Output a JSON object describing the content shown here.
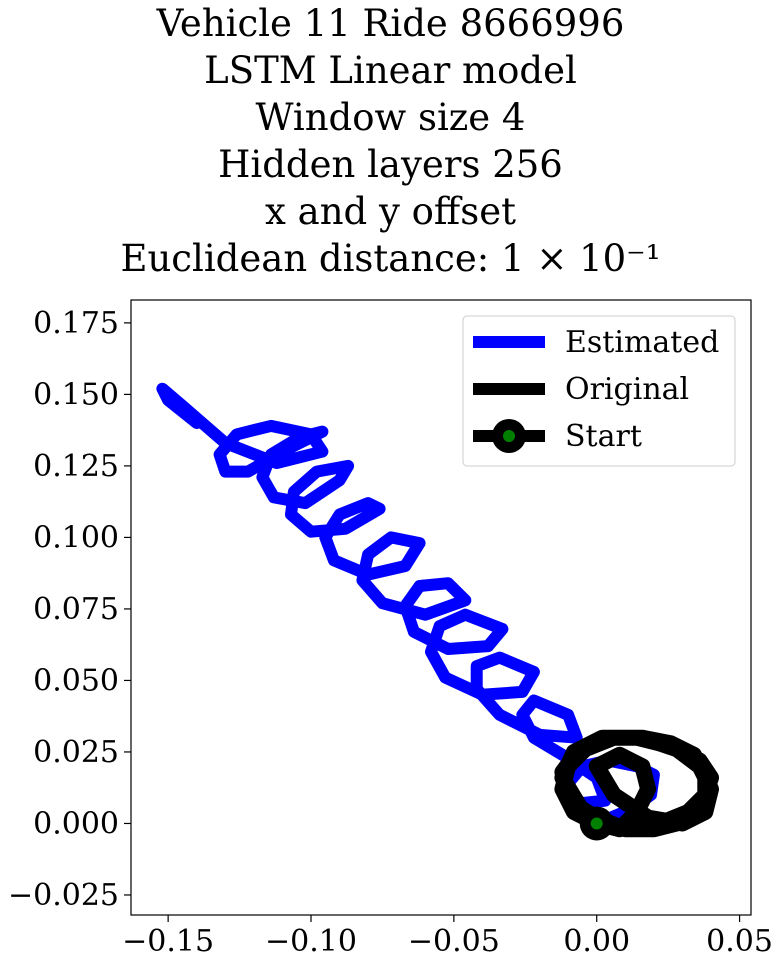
{
  "chart_data": {
    "type": "line",
    "title_lines": [
      "Vehicle 11 Ride 8666996",
      "LSTM Linear model",
      "Window size 4",
      "Hidden layers 256",
      "x and y offset",
      "Euclidean distance: 1 × 10⁻¹"
    ],
    "xlim": [
      -0.163,
      0.054
    ],
    "ylim": [
      -0.032,
      0.183
    ],
    "x_ticks": [
      -0.15,
      -0.1,
      -0.05,
      0.0,
      0.05
    ],
    "x_tick_labels": [
      "−0.15",
      "−0.10",
      "−0.05",
      "0.00",
      "0.05"
    ],
    "y_ticks": [
      -0.025,
      0.0,
      0.025,
      0.05,
      0.075,
      0.1,
      0.125,
      0.15,
      0.175
    ],
    "y_tick_labels": [
      "−0.025",
      "0.000",
      "0.025",
      "0.050",
      "0.075",
      "0.100",
      "0.125",
      "0.150",
      "0.175"
    ],
    "grid": false,
    "legend_position": "top-right",
    "series": [
      {
        "name": "Estimated",
        "color": "#0000ff",
        "description": "spiral trajectory",
        "x": [
          0.0,
          0.012,
          0.019,
          0.02,
          0.014,
          0.004,
          -0.005,
          -0.01,
          -0.006,
          0.003,
          0.0,
          -0.012,
          -0.022,
          -0.026,
          -0.022,
          -0.01,
          -0.007,
          -0.02,
          -0.034,
          -0.042,
          -0.042,
          -0.034,
          -0.022,
          -0.026,
          -0.04,
          -0.053,
          -0.058,
          -0.055,
          -0.046,
          -0.033,
          -0.038,
          -0.052,
          -0.064,
          -0.067,
          -0.062,
          -0.052,
          -0.046,
          -0.06,
          -0.075,
          -0.082,
          -0.08,
          -0.072,
          -0.062,
          -0.067,
          -0.08,
          -0.092,
          -0.095,
          -0.09,
          -0.08,
          -0.076,
          -0.088,
          -0.1,
          -0.107,
          -0.106,
          -0.098,
          -0.087,
          -0.09,
          -0.102,
          -0.113,
          -0.117,
          -0.114,
          -0.104,
          -0.096,
          -0.108,
          -0.122,
          -0.13,
          -0.132,
          -0.126,
          -0.114,
          -0.1,
          -0.096,
          -0.112,
          -0.13,
          -0.145,
          -0.152,
          -0.15,
          -0.14
        ],
        "y": [
          0.0,
          0.005,
          0.01,
          0.017,
          0.02,
          0.022,
          0.02,
          0.014,
          0.007,
          0.008,
          0.016,
          0.024,
          0.03,
          0.038,
          0.043,
          0.038,
          0.03,
          0.031,
          0.038,
          0.047,
          0.055,
          0.058,
          0.053,
          0.046,
          0.045,
          0.051,
          0.06,
          0.069,
          0.073,
          0.068,
          0.062,
          0.061,
          0.067,
          0.076,
          0.083,
          0.084,
          0.078,
          0.073,
          0.077,
          0.085,
          0.094,
          0.1,
          0.098,
          0.09,
          0.087,
          0.092,
          0.1,
          0.108,
          0.112,
          0.11,
          0.103,
          0.102,
          0.108,
          0.116,
          0.123,
          0.125,
          0.12,
          0.112,
          0.114,
          0.121,
          0.129,
          0.135,
          0.137,
          0.131,
          0.123,
          0.123,
          0.129,
          0.136,
          0.139,
          0.136,
          0.13,
          0.126,
          0.133,
          0.146,
          0.152,
          0.148,
          0.14
        ]
      },
      {
        "name": "Original",
        "color": "#000000",
        "description": "loops near origin",
        "x": [
          0.0,
          0.01,
          0.02,
          0.028,
          0.034,
          0.038,
          0.038,
          0.034,
          0.026,
          0.016,
          0.006,
          -0.004,
          -0.01,
          -0.012,
          -0.008,
          0.0,
          0.008,
          0.014,
          0.018,
          0.016,
          0.008,
          0.0,
          0.006,
          0.018,
          0.03,
          0.038,
          0.04,
          0.036,
          0.028,
          0.016,
          0.004,
          -0.006,
          -0.012,
          -0.01,
          0.0,
          0.01,
          0.022,
          0.032,
          0.038,
          0.04,
          0.036,
          0.026,
          0.014,
          0.002,
          -0.008,
          -0.012,
          -0.006,
          0.0
        ],
        "y": [
          0.0,
          -0.002,
          -0.002,
          0.0,
          0.004,
          0.01,
          0.017,
          0.024,
          0.028,
          0.03,
          0.03,
          0.026,
          0.02,
          0.012,
          0.004,
          0.0,
          -0.002,
          0.004,
          0.012,
          0.02,
          0.024,
          0.02,
          0.01,
          0.002,
          0.0,
          0.004,
          0.012,
          0.02,
          0.026,
          0.03,
          0.03,
          0.026,
          0.018,
          0.008,
          0.002,
          -0.002,
          0.0,
          0.004,
          0.01,
          0.016,
          0.022,
          0.027,
          0.03,
          0.03,
          0.025,
          0.016,
          0.006,
          0.0
        ]
      }
    ],
    "start_point": {
      "name": "Start",
      "x": 0.0,
      "y": 0.0,
      "color": "#008000"
    },
    "legend": [
      "Estimated",
      "Original",
      "Start"
    ]
  }
}
